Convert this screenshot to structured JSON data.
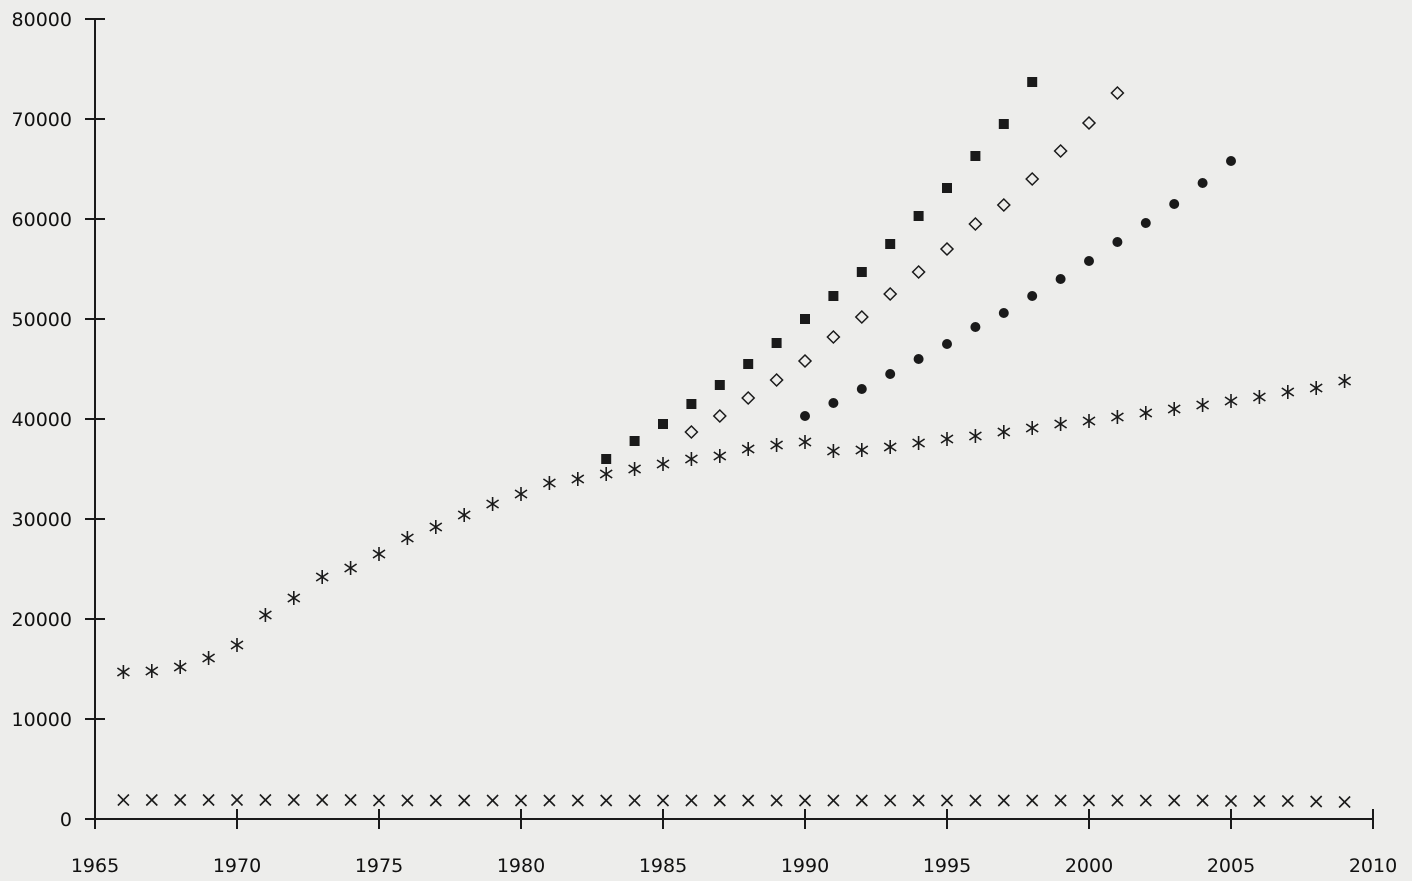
{
  "chart_data": {
    "type": "scatter",
    "title": "",
    "xlabel": "",
    "ylabel": "",
    "xlim": [
      1965,
      2010
    ],
    "ylim": [
      0,
      80000
    ],
    "x_ticks": [
      1965,
      1970,
      1975,
      1980,
      1985,
      1990,
      1995,
      2000,
      2005,
      2010
    ],
    "y_ticks": [
      0,
      10000,
      20000,
      30000,
      40000,
      50000,
      60000,
      70000,
      80000
    ],
    "grid": false,
    "legend": "none",
    "series": [
      {
        "marker": "asterisk",
        "color": "#1a1a1a",
        "points": [
          [
            1966,
            14700
          ],
          [
            1967,
            14800
          ],
          [
            1968,
            15200
          ],
          [
            1969,
            16100
          ],
          [
            1970,
            17400
          ],
          [
            1971,
            20400
          ],
          [
            1972,
            22100
          ],
          [
            1973,
            24200
          ],
          [
            1974,
            25100
          ],
          [
            1975,
            26500
          ],
          [
            1976,
            28100
          ],
          [
            1977,
            29200
          ],
          [
            1978,
            30400
          ],
          [
            1979,
            31500
          ],
          [
            1980,
            32500
          ],
          [
            1981,
            33600
          ],
          [
            1982,
            34000
          ],
          [
            1983,
            34500
          ],
          [
            1984,
            35000
          ],
          [
            1985,
            35500
          ],
          [
            1986,
            36000
          ],
          [
            1987,
            36300
          ],
          [
            1988,
            37000
          ],
          [
            1989,
            37400
          ],
          [
            1990,
            37700
          ],
          [
            1991,
            36800
          ],
          [
            1992,
            36900
          ],
          [
            1993,
            37200
          ],
          [
            1994,
            37600
          ],
          [
            1995,
            38000
          ],
          [
            1996,
            38300
          ],
          [
            1997,
            38700
          ],
          [
            1998,
            39100
          ],
          [
            1999,
            39500
          ],
          [
            2000,
            39800
          ],
          [
            2001,
            40200
          ],
          [
            2002,
            40600
          ],
          [
            2003,
            41000
          ],
          [
            2004,
            41400
          ],
          [
            2005,
            41800
          ],
          [
            2006,
            42200
          ],
          [
            2007,
            42700
          ],
          [
            2008,
            43100
          ],
          [
            2009,
            43800
          ]
        ]
      },
      {
        "marker": "x",
        "color": "#1a1a1a",
        "points": [
          [
            1966,
            1900
          ],
          [
            1967,
            1900
          ],
          [
            1968,
            1900
          ],
          [
            1969,
            1900
          ],
          [
            1970,
            1900
          ],
          [
            1971,
            1900
          ],
          [
            1972,
            1900
          ],
          [
            1973,
            1900
          ],
          [
            1974,
            1900
          ],
          [
            1975,
            1850
          ],
          [
            1976,
            1850
          ],
          [
            1977,
            1850
          ],
          [
            1978,
            1850
          ],
          [
            1979,
            1850
          ],
          [
            1980,
            1850
          ],
          [
            1981,
            1850
          ],
          [
            1982,
            1850
          ],
          [
            1983,
            1850
          ],
          [
            1984,
            1850
          ],
          [
            1985,
            1850
          ],
          [
            1986,
            1850
          ],
          [
            1987,
            1850
          ],
          [
            1988,
            1850
          ],
          [
            1989,
            1850
          ],
          [
            1990,
            1850
          ],
          [
            1991,
            1850
          ],
          [
            1992,
            1850
          ],
          [
            1993,
            1850
          ],
          [
            1994,
            1850
          ],
          [
            1995,
            1850
          ],
          [
            1996,
            1850
          ],
          [
            1997,
            1850
          ],
          [
            1998,
            1850
          ],
          [
            1999,
            1850
          ],
          [
            2000,
            1850
          ],
          [
            2001,
            1850
          ],
          [
            2002,
            1850
          ],
          [
            2003,
            1850
          ],
          [
            2004,
            1850
          ],
          [
            2005,
            1800
          ],
          [
            2006,
            1800
          ],
          [
            2007,
            1800
          ],
          [
            2008,
            1750
          ],
          [
            2009,
            1700
          ]
        ]
      },
      {
        "marker": "filled-square",
        "color": "#1a1a1a",
        "points": [
          [
            1983,
            36000
          ],
          [
            1984,
            37800
          ],
          [
            1985,
            39500
          ],
          [
            1986,
            41500
          ],
          [
            1987,
            43400
          ],
          [
            1988,
            45500
          ],
          [
            1989,
            47600
          ],
          [
            1990,
            50000
          ],
          [
            1991,
            52300
          ],
          [
            1992,
            54700
          ],
          [
            1993,
            57500
          ],
          [
            1994,
            60300
          ],
          [
            1995,
            63100
          ],
          [
            1996,
            66300
          ],
          [
            1997,
            69500
          ],
          [
            1998,
            73700
          ]
        ]
      },
      {
        "marker": "open-diamond",
        "color": "#1a1a1a",
        "points": [
          [
            1986,
            38700
          ],
          [
            1987,
            40300
          ],
          [
            1988,
            42100
          ],
          [
            1989,
            43900
          ],
          [
            1990,
            45800
          ],
          [
            1991,
            48200
          ],
          [
            1992,
            50200
          ],
          [
            1993,
            52500
          ],
          [
            1994,
            54700
          ],
          [
            1995,
            57000
          ],
          [
            1996,
            59500
          ],
          [
            1997,
            61400
          ],
          [
            1998,
            64000
          ],
          [
            1999,
            66800
          ],
          [
            2000,
            69600
          ],
          [
            2001,
            72600
          ]
        ]
      },
      {
        "marker": "filled-circle",
        "color": "#1a1a1a",
        "points": [
          [
            1990,
            40300
          ],
          [
            1991,
            41600
          ],
          [
            1992,
            43000
          ],
          [
            1993,
            44500
          ],
          [
            1994,
            46000
          ],
          [
            1995,
            47500
          ],
          [
            1996,
            49200
          ],
          [
            1997,
            50600
          ],
          [
            1998,
            52300
          ],
          [
            1999,
            54000
          ],
          [
            2000,
            55800
          ],
          [
            2001,
            57700
          ],
          [
            2002,
            59600
          ],
          [
            2003,
            61500
          ],
          [
            2004,
            63600
          ],
          [
            2005,
            65800
          ]
        ]
      }
    ]
  }
}
